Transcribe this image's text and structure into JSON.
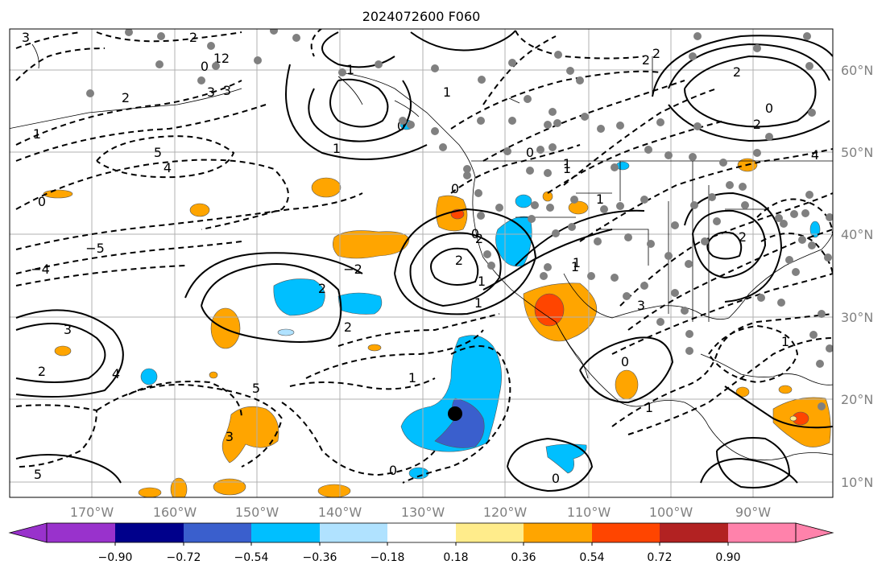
{
  "title": "2024072600 F060",
  "lon_labels": [
    "170°W",
    "160°W",
    "150°W",
    "140°W",
    "130°W",
    "120°W",
    "110°W",
    "100°W",
    "90°W"
  ],
  "lat_labels": [
    "60°N",
    "50°N",
    "40°N",
    "30°N",
    "20°N",
    "10°N"
  ],
  "colorbar": {
    "colors": [
      "#9932cc",
      "#00008b",
      "#3a5fcd",
      "#00bfff",
      "#b0e2ff",
      "#ffffff",
      "#ffec8b",
      "#ffa500",
      "#ff4500",
      "#b22222",
      "#ff82ab"
    ],
    "tick_labels": [
      "−0.90",
      "−0.72",
      "−0.54",
      "−0.36",
      "−0.18",
      "0.18",
      "0.36",
      "0.54",
      "0.72",
      "0.90"
    ]
  },
  "contour_labels": [
    "3",
    "2",
    "0",
    "1",
    "5",
    "4",
    "3",
    "1",
    "0",
    "−5",
    "−4",
    "3",
    "2",
    "2",
    "2",
    "1",
    "0",
    "1",
    "2",
    "2",
    "1",
    "1",
    "0",
    "0",
    "1",
    "1",
    "1",
    "2",
    "2",
    "0",
    "2",
    "2",
    "2",
    "1",
    "3",
    "4",
    "5",
    "3",
    "5",
    "4",
    "2",
    "3",
    "2",
    "1",
    "0",
    "1",
    "0",
    "0",
    "−2",
    "1",
    "0",
    "1",
    "1"
  ],
  "marker": {
    "lon": -126,
    "lat": 18
  },
  "colors": {
    "grid": "#b0b0b0",
    "contour": "#000000",
    "station": "#808080"
  }
}
